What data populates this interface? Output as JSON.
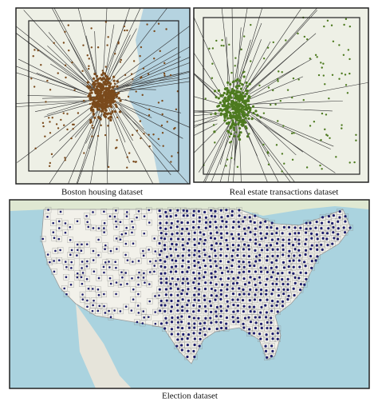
{
  "panels": [
    {
      "caption": "Boston housing dataset"
    },
    {
      "caption": "Real estate transactions dataset"
    },
    {
      "caption": "Election dataset"
    }
  ]
}
